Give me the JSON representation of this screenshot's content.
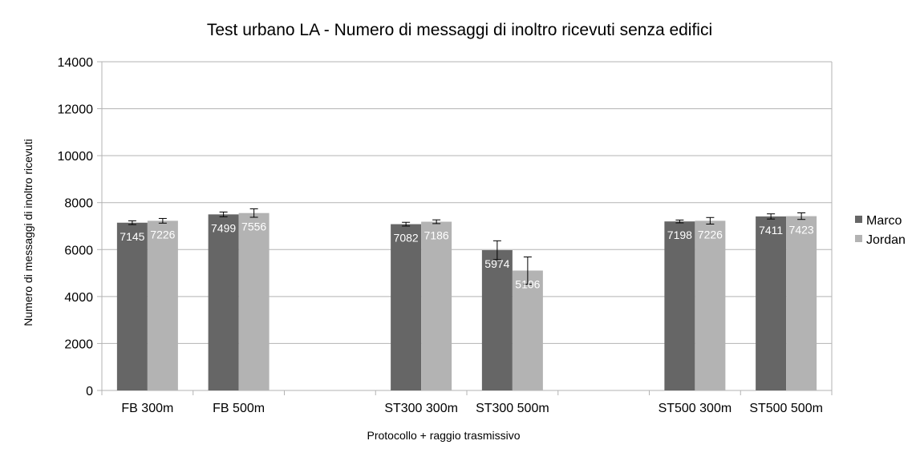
{
  "chart_data": {
    "type": "bar",
    "title": "Test urbano LA - Numero di messaggi di inoltro ricevuti senza edifici",
    "xlabel": "Protocollo + raggio trasmissivo",
    "ylabel": "Numero di messaggi di inoltro ricevuti",
    "ylim": [
      0,
      14000
    ],
    "yticks": [
      0,
      2000,
      4000,
      6000,
      8000,
      10000,
      12000,
      14000
    ],
    "grid": true,
    "legend_position": "right",
    "categories": [
      "FB 300m",
      "FB 500m",
      "",
      "ST300 300m",
      "ST300 500m",
      "",
      "ST500 300m",
      "ST500 500m"
    ],
    "series": [
      {
        "name": "Marco",
        "color": "#666666",
        "values": [
          7145,
          7499,
          null,
          7082,
          5974,
          null,
          7198,
          7411
        ],
        "labels": [
          "7145",
          "7499",
          "",
          "7082",
          "5974",
          "",
          "7198",
          "7411"
        ],
        "error": [
          80,
          100,
          null,
          80,
          400,
          null,
          60,
          110
        ]
      },
      {
        "name": "Jordan",
        "color": "#b3b3b3",
        "values": [
          7226,
          7556,
          null,
          7186,
          5106,
          null,
          7226,
          7423
        ],
        "labels": [
          "7226",
          "7556",
          "",
          "7186",
          "5106",
          "",
          "7226",
          "7423"
        ],
        "error": [
          100,
          180,
          null,
          80,
          580,
          null,
          140,
          140
        ]
      }
    ]
  }
}
